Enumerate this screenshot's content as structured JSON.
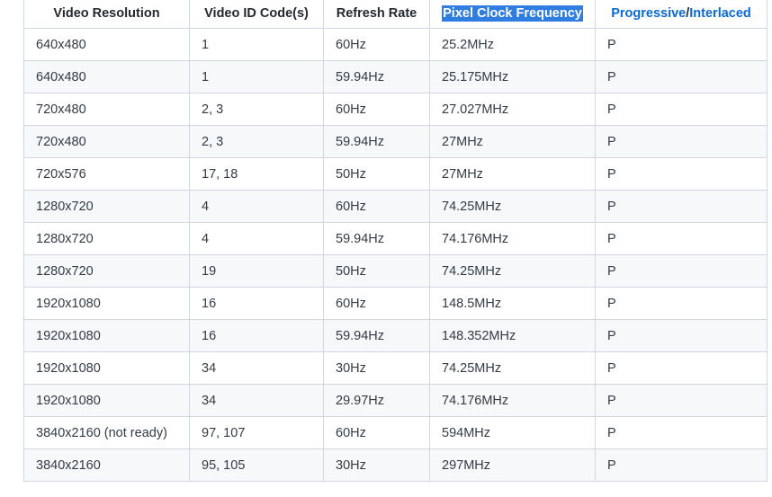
{
  "table": {
    "headers": {
      "resolution": "Video Resolution",
      "vic": "Video ID Code(s)",
      "refresh": "Refresh Rate",
      "pixel_clock": "Pixel Clock Frequency",
      "progressive": "Progressive",
      "separator": "/",
      "interlaced": "Interlaced"
    },
    "rows": [
      {
        "resolution": "640x480",
        "vic": "1",
        "refresh": "60Hz",
        "pixel_clock": "25.2MHz",
        "scan": "P"
      },
      {
        "resolution": "640x480",
        "vic": "1",
        "refresh": "59.94Hz",
        "pixel_clock": "25.175MHz",
        "scan": "P"
      },
      {
        "resolution": "720x480",
        "vic": "2, 3",
        "refresh": "60Hz",
        "pixel_clock": "27.027MHz",
        "scan": "P"
      },
      {
        "resolution": "720x480",
        "vic": "2, 3",
        "refresh": "59.94Hz",
        "pixel_clock": "27MHz",
        "scan": "P"
      },
      {
        "resolution": "720x576",
        "vic": "17, 18",
        "refresh": "50Hz",
        "pixel_clock": "27MHz",
        "scan": "P"
      },
      {
        "resolution": "1280x720",
        "vic": "4",
        "refresh": "60Hz",
        "pixel_clock": "74.25MHz",
        "scan": "P"
      },
      {
        "resolution": "1280x720",
        "vic": "4",
        "refresh": "59.94Hz",
        "pixel_clock": "74.176MHz",
        "scan": "P"
      },
      {
        "resolution": "1280x720",
        "vic": "19",
        "refresh": "50Hz",
        "pixel_clock": "74.25MHz",
        "scan": "P"
      },
      {
        "resolution": "1920x1080",
        "vic": "16",
        "refresh": "60Hz",
        "pixel_clock": "148.5MHz",
        "scan": "P"
      },
      {
        "resolution": "1920x1080",
        "vic": "16",
        "refresh": "59.94Hz",
        "pixel_clock": "148.352MHz",
        "scan": "P"
      },
      {
        "resolution": "1920x1080",
        "vic": "34",
        "refresh": "30Hz",
        "pixel_clock": "74.25MHz",
        "scan": "P"
      },
      {
        "resolution": "1920x1080",
        "vic": "34",
        "refresh": "29.97Hz",
        "pixel_clock": "74.176MHz",
        "scan": "P"
      },
      {
        "resolution": "3840x2160 (not ready)",
        "vic": "97, 107",
        "refresh": "60Hz",
        "pixel_clock": "594MHz",
        "scan": "P"
      },
      {
        "resolution": "3840x2160",
        "vic": "95, 105",
        "refresh": "30Hz",
        "pixel_clock": "297MHz",
        "scan": "P"
      }
    ]
  },
  "colors": {
    "selection_highlight": "#2f7de1",
    "link": "#0969da",
    "border": "#d0d7de",
    "stripe": "#f6f8fa"
  }
}
